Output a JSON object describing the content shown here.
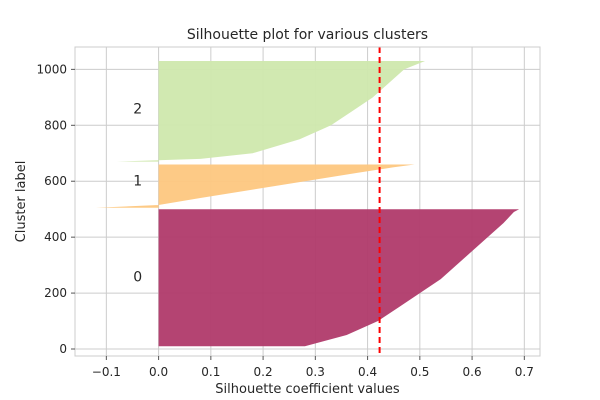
{
  "chart_data": {
    "type": "area",
    "title": "Silhouette plot for various clusters",
    "xlabel": "Silhouette coefficient values",
    "ylabel": "Cluster label",
    "xlim": [
      -0.16,
      0.73
    ],
    "ylim": [
      -25,
      1080
    ],
    "xticks": [
      -0.1,
      0.0,
      0.1,
      0.2,
      0.3,
      0.4,
      0.5,
      0.6,
      0.7
    ],
    "xtick_labels": [
      "−0.1",
      "0.0",
      "0.1",
      "0.2",
      "0.3",
      "0.4",
      "0.5",
      "0.6",
      "0.7"
    ],
    "yticks": [
      0,
      200,
      400,
      600,
      800,
      1000
    ],
    "ytick_labels": [
      "0",
      "200",
      "400",
      "600",
      "800",
      "1000"
    ],
    "grid": true,
    "average_silhouette": 0.423,
    "average_line_color": "#ff0000",
    "series": [
      {
        "name": "0",
        "color": "#b03a6a",
        "y_range": [
          10,
          500
        ],
        "label_x": -0.04,
        "label_y": 260,
        "profile": [
          [
            10,
            0.28
          ],
          [
            50,
            0.36
          ],
          [
            100,
            0.42
          ],
          [
            150,
            0.46
          ],
          [
            200,
            0.5
          ],
          [
            250,
            0.54
          ],
          [
            300,
            0.57
          ],
          [
            350,
            0.6
          ],
          [
            400,
            0.63
          ],
          [
            450,
            0.66
          ],
          [
            490,
            0.68
          ],
          [
            500,
            0.69
          ]
        ]
      },
      {
        "name": "1",
        "color": "#fdc780",
        "y_range": [
          505,
          660
        ],
        "label_x": -0.04,
        "label_y": 603,
        "profile": [
          [
            505,
            -0.12
          ],
          [
            515,
            0.0
          ],
          [
            540,
            0.08
          ],
          [
            570,
            0.18
          ],
          [
            600,
            0.28
          ],
          [
            630,
            0.38
          ],
          [
            650,
            0.45
          ],
          [
            660,
            0.49
          ]
        ]
      },
      {
        "name": "2",
        "color": "#cfe8ad",
        "y_range": [
          670,
          1030
        ],
        "label_x": -0.04,
        "label_y": 860,
        "profile": [
          [
            670,
            -0.08
          ],
          [
            680,
            0.08
          ],
          [
            700,
            0.18
          ],
          [
            750,
            0.27
          ],
          [
            800,
            0.33
          ],
          [
            850,
            0.37
          ],
          [
            900,
            0.41
          ],
          [
            950,
            0.44
          ],
          [
            1000,
            0.47
          ],
          [
            1030,
            0.51
          ]
        ]
      }
    ]
  }
}
